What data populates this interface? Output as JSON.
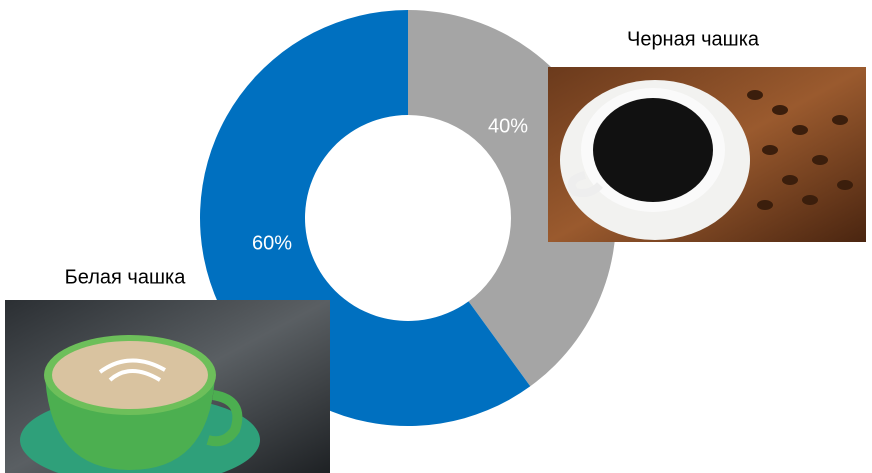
{
  "chart_data": {
    "type": "pie",
    "categories": [
      "Черная чашка",
      "Белая чашка"
    ],
    "values": [
      40,
      60
    ],
    "value_labels": [
      "40%",
      "60%"
    ],
    "colors": [
      "#a5a5a5",
      "#0070c0"
    ],
    "donut": true
  }
}
